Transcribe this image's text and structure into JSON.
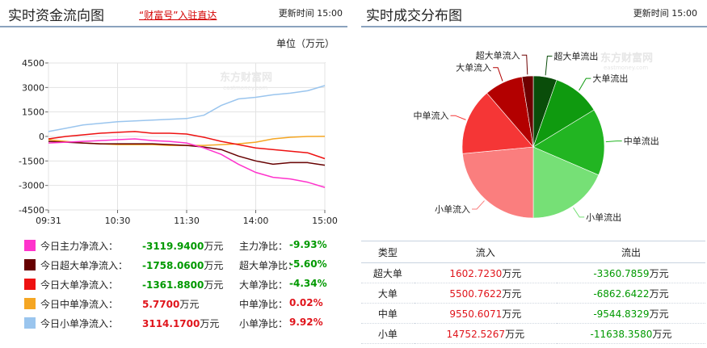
{
  "left": {
    "title": "实时资金流向图",
    "link": "“财富号”入驻直达",
    "update_time": "更新时间 15:00",
    "unit": "单位（万元）",
    "watermark": "东方财富网",
    "watermark_sub": "eastmoney.com"
  },
  "right": {
    "title": "实时成交分布图",
    "update_time": "更新时间 15:00",
    "watermark": "东方财富网",
    "watermark_sub": "eastmoney.com"
  },
  "legend": [
    {
      "name": "今日主力净流入：",
      "value": "-3119.9400",
      "unit": "万元",
      "ratio_label": "主力净比：",
      "ratio": "-9.93%",
      "color": "#ff33cc",
      "sign": "neg"
    },
    {
      "name": "今日超大单净流入：",
      "value": "-1758.0600",
      "unit": "万元",
      "ratio_label": "超大单净比：",
      "ratio": "-5.60%",
      "color": "#660000",
      "sign": "neg"
    },
    {
      "name": "今日大单净流入：",
      "value": "-1361.8800",
      "unit": "万元",
      "ratio_label": "大单净比：",
      "ratio": "-4.34%",
      "color": "#ee1111",
      "sign": "neg"
    },
    {
      "name": "今日中单净流入：",
      "value": "5.7700",
      "unit": "万元",
      "ratio_label": "中单净比：",
      "ratio": "0.02%",
      "color": "#f5a623",
      "sign": "pos"
    },
    {
      "name": "今日小单净流入：",
      "value": "3114.1700",
      "unit": "万元",
      "ratio_label": "小单净比：",
      "ratio": "9.92%",
      "color": "#9ac5ee",
      "sign": "pos"
    }
  ],
  "table": {
    "headers": [
      "类型",
      "流入",
      "流出"
    ],
    "rows": [
      {
        "type": "超大单",
        "in": "1602.7230",
        "out": "-3360.7859",
        "unit": "万元"
      },
      {
        "type": "大单",
        "in": "5500.7622",
        "out": "-6862.6422",
        "unit": "万元"
      },
      {
        "type": "中单",
        "in": "9550.6071",
        "out": "-9544.8329",
        "unit": "万元"
      },
      {
        "type": "小单",
        "in": "14752.5267",
        "out": "-11638.3580",
        "unit": "万元"
      }
    ]
  },
  "chart_data": [
    {
      "type": "line",
      "ylim": [
        -4500,
        4500
      ],
      "yticks": [
        4500,
        3000,
        1500,
        0,
        -1500,
        -3000,
        -4500
      ],
      "xticks": [
        "09:31",
        "10:30",
        "11:30",
        "14:00",
        "15:00"
      ],
      "x": [
        "09:31",
        "09:45",
        "10:00",
        "10:15",
        "10:30",
        "10:45",
        "11:00",
        "11:15",
        "11:30",
        "13:15",
        "13:30",
        "13:45",
        "14:00",
        "14:15",
        "14:30",
        "14:45",
        "15:00"
      ],
      "grid": true,
      "series": [
        {
          "color": "#9ac5ee",
          "values": [
            300,
            500,
            700,
            800,
            900,
            950,
            1000,
            1050,
            1100,
            1300,
            1900,
            2300,
            2400,
            2550,
            2650,
            2800,
            3114
          ]
        },
        {
          "color": "#f5a623",
          "values": [
            -200,
            -300,
            -400,
            -450,
            -500,
            -500,
            -500,
            -550,
            -550,
            -550,
            -500,
            -450,
            -350,
            -150,
            -50,
            0,
            6
          ]
        },
        {
          "color": "#ee1111",
          "values": [
            -150,
            0,
            100,
            200,
            250,
            300,
            200,
            200,
            150,
            -50,
            -300,
            -500,
            -700,
            -800,
            -900,
            -1000,
            -1362
          ]
        },
        {
          "color": "#660000",
          "values": [
            -300,
            -350,
            -400,
            -450,
            -450,
            -450,
            -450,
            -500,
            -550,
            -650,
            -800,
            -1200,
            -1500,
            -1700,
            -1600,
            -1600,
            -1758
          ]
        },
        {
          "color": "#ff33cc",
          "values": [
            -400,
            -350,
            -300,
            -250,
            -200,
            -150,
            -250,
            -300,
            -400,
            -700,
            -1100,
            -1700,
            -2200,
            -2500,
            -2600,
            -2800,
            -3120
          ]
        }
      ]
    },
    {
      "type": "pie",
      "labels": [
        "超大单流出",
        "大单流出",
        "中单流出",
        "小单流出",
        "小单流入",
        "中单流入",
        "大单流入",
        "超大单流入"
      ],
      "values": [
        3360.7859,
        6862.6422,
        9544.8329,
        11638.358,
        14752.5267,
        9550.6071,
        5500.7622,
        1602.723
      ],
      "colors": [
        "#0a4d0a",
        "#0f9a0f",
        "#22b522",
        "#76e076",
        "#fa7e7e",
        "#f53636",
        "#b30000",
        "#6e0000"
      ]
    }
  ]
}
